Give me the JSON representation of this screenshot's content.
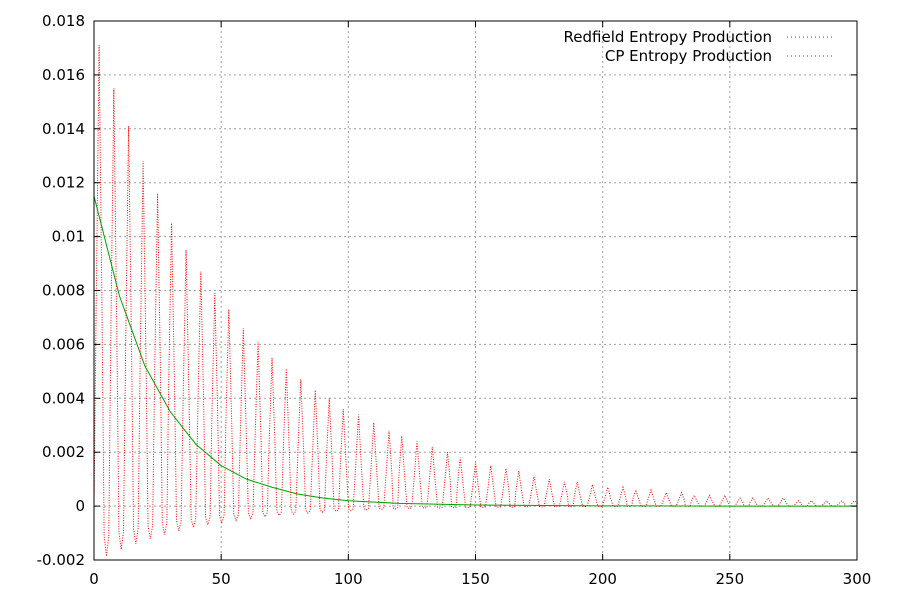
{
  "chart_data": {
    "type": "line",
    "title": "",
    "xlabel": "",
    "ylabel": "",
    "xlim": [
      0,
      300
    ],
    "ylim": [
      -0.002,
      0.018
    ],
    "grid": true,
    "legend_position": "top-right",
    "x_ticks": [
      "0",
      "50",
      "100",
      "150",
      "200",
      "250",
      "300"
    ],
    "y_ticks": [
      "-0.002",
      "0",
      "0.002",
      "0.004",
      "0.006",
      "0.008",
      "0.01",
      "0.012",
      "0.014",
      "0.016",
      "0.018"
    ],
    "series": [
      {
        "name": "Redfield Entropy Production",
        "color": "#ff0000",
        "style": "dotted-oscillation",
        "peak_t": [
          2,
          7.8,
          13.6,
          19.3,
          25,
          30.5,
          36.2,
          42,
          47.5,
          53,
          58.7,
          64.5,
          70,
          75.6,
          81.3,
          87,
          92.5,
          98,
          104,
          110,
          116,
          121,
          127,
          133,
          139,
          144,
          150,
          156,
          162,
          167,
          173,
          179,
          185,
          190,
          196,
          202,
          208,
          213,
          219,
          225,
          231,
          236,
          242,
          248,
          254,
          259,
          265,
          271,
          277,
          282,
          288,
          294,
          299
        ],
        "peak_values": [
          0.0171,
          0.0155,
          0.0141,
          0.0128,
          0.0116,
          0.0105,
          0.0095,
          0.0087,
          0.0079,
          0.0073,
          0.0066,
          0.0061,
          0.0055,
          0.0051,
          0.0047,
          0.0043,
          0.004,
          0.0036,
          0.0034,
          0.0031,
          0.0028,
          0.0026,
          0.0024,
          0.0022,
          0.002,
          0.0018,
          0.0016,
          0.0015,
          0.0014,
          0.0013,
          0.0011,
          0.001,
          0.0009,
          0.0009,
          0.0008,
          0.0007,
          0.0007,
          0.0006,
          0.0006,
          0.0005,
          0.0005,
          0.0004,
          0.0004,
          0.0004,
          0.0003,
          0.0003,
          0.0003,
          0.0003,
          0.0002,
          0.0002,
          0.0002,
          0.0002,
          0.0002
        ],
        "trough_value_start": -0.0021,
        "decay_rate": 0.0155
      },
      {
        "name": "CP Entropy Production",
        "color": "#00a000",
        "style": "smooth-decay",
        "x": [
          0,
          10,
          20,
          30,
          40,
          50,
          60,
          70,
          80,
          90,
          100,
          120,
          150,
          200,
          250,
          300
        ],
        "values": [
          0.0115,
          0.0078,
          0.0052,
          0.0035,
          0.0023,
          0.0015,
          0.001,
          0.0007,
          0.00045,
          0.0003,
          0.0002,
          0.0001,
          4e-05,
          1e-05,
          0.0,
          0.0
        ]
      }
    ]
  }
}
